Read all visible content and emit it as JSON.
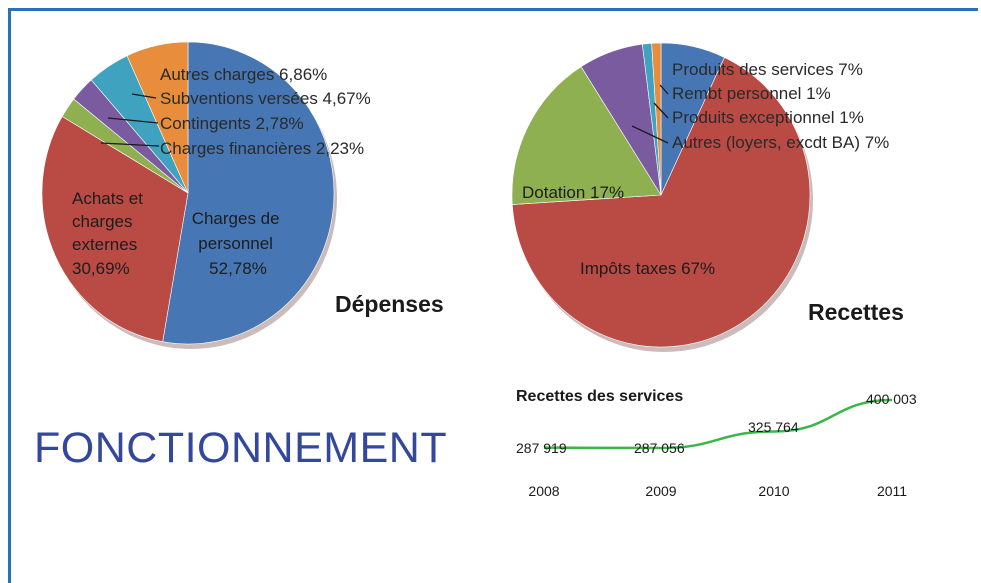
{
  "heading": "FONCTIONNEMENT",
  "chart_data": [
    {
      "type": "pie",
      "title": "Dépenses",
      "slices": [
        {
          "label": "Charges de personnel 52,78%",
          "value": 52.78,
          "color": "#4677b4"
        },
        {
          "label": "Achats et charges externes 30,69%",
          "value": 30.69,
          "color": "#b94a44"
        },
        {
          "label": "Charges financières 2,23%",
          "value": 2.23,
          "color": "#8fb050"
        },
        {
          "label": "Contingents 2,78%",
          "value": 2.78,
          "color": "#7b5ba0"
        },
        {
          "label": "Subventions versées 4,67%",
          "value": 4.67,
          "color": "#3fa3c0"
        },
        {
          "label": "Autres charges 6,86%",
          "value": 6.86,
          "color": "#e88d3c"
        }
      ],
      "text": {
        "personnel": [
          "Charges de",
          "personnel",
          "52,78%"
        ],
        "achats": [
          "Achats et",
          "charges",
          "externes",
          "30,69%"
        ],
        "autres": "Autres charges 6,86%",
        "subventions": "Subventions versées 4,67%",
        "contingents": "Contingents 2,78%",
        "financieres": "Charges financières 2,23%"
      }
    },
    {
      "type": "pie",
      "title": "Recettes",
      "slices": [
        {
          "label": "Produits des services 7%",
          "value": 7,
          "color": "#4677b4"
        },
        {
          "label": "Impôts taxes 67%",
          "value": 67,
          "color": "#b94a44"
        },
        {
          "label": "Dotation 17%",
          "value": 17,
          "color": "#8fb050"
        },
        {
          "label": "Autres (loyers, excdt BA) 7%",
          "value": 7,
          "color": "#7b5ba0"
        },
        {
          "label": "Produits exceptionnel 1%",
          "value": 1,
          "color": "#3fa3c0"
        },
        {
          "label": "Rembt personnel 1%",
          "value": 1,
          "color": "#e88d3c"
        }
      ],
      "text": {
        "produits": "Produits des services 7%",
        "rembt": "Rembt personnel 1%",
        "exceptionnel": "Produits exceptionnel 1%",
        "autres": "Autres (loyers, excdt BA) 7%",
        "dotation": "Dotation 17%",
        "impots": "Impôts taxes 67%"
      }
    },
    {
      "type": "line",
      "title": "Recettes des services",
      "categories": [
        "2008",
        "2009",
        "2010",
        "2011"
      ],
      "values": [
        287919,
        287056,
        325764,
        400003
      ],
      "value_labels": [
        "287 919",
        "287 056",
        "325 764",
        "400 003"
      ],
      "color": "#3cb54a"
    }
  ]
}
